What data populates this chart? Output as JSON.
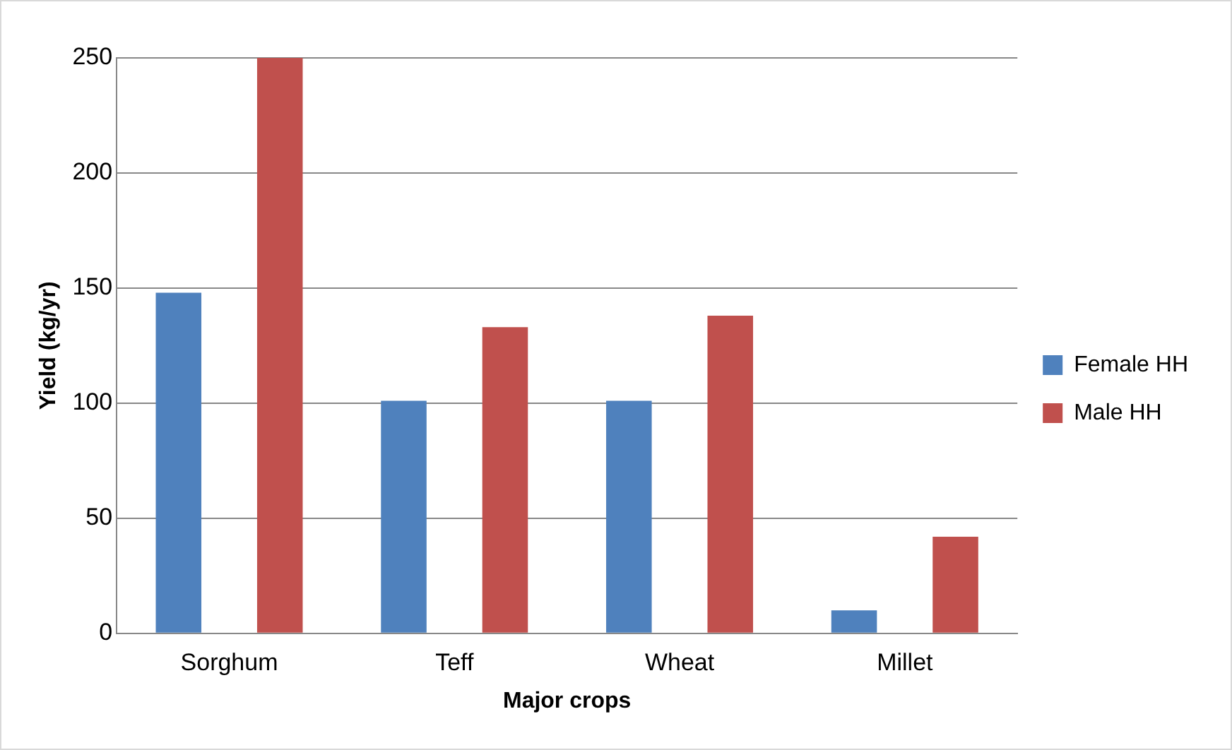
{
  "chart_data": {
    "type": "bar",
    "xlabel": "Major crops",
    "ylabel": "Yield (kg/yr)",
    "categories": [
      "Sorghum",
      "Teff",
      "Wheat",
      "Millet"
    ],
    "series": [
      {
        "name": "Female HH",
        "color": "#4f81bd",
        "values": [
          148,
          101,
          101,
          10
        ]
      },
      {
        "name": "Male HH",
        "color": "#c0504d",
        "values": [
          250,
          133,
          138,
          42
        ]
      }
    ],
    "ylim": [
      0,
      250
    ],
    "yticks": [
      0,
      50,
      100,
      150,
      200,
      250
    ],
    "grid": "y",
    "legend": "right"
  }
}
